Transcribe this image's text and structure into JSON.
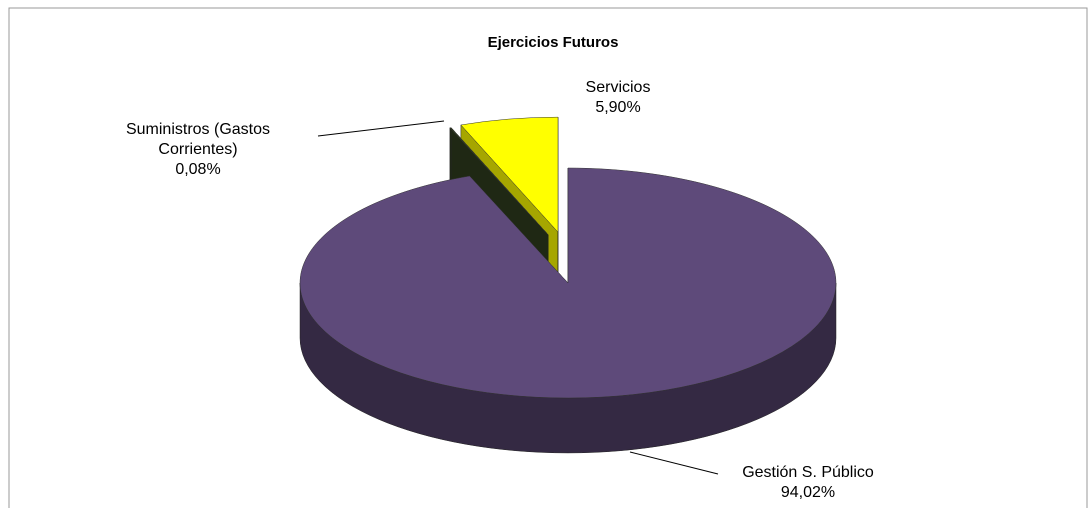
{
  "chart_data": {
    "type": "pie3d",
    "title": "Ejercicios Futuros",
    "categories": [
      "Gestión S. Público",
      "Suministros (Gastos Corrientes)",
      "Servicios"
    ],
    "values": [
      94.02,
      0.08,
      5.9
    ],
    "value_labels": [
      "94,02%",
      "0,08%",
      "5,90%"
    ],
    "colors": [
      "#5e4a7a",
      "#2f3d1e",
      "#ffff00"
    ],
    "exploded": [
      false,
      true,
      true
    ]
  }
}
